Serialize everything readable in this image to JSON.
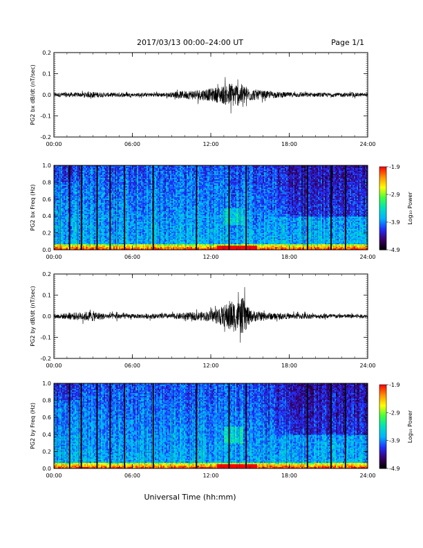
{
  "header": {
    "title": "2017/03/13  00:00–24:00 UT",
    "page": "Page 1/1"
  },
  "xaxis": {
    "label": "Universal Time (hh:mm)",
    "ticks": [
      "00:00",
      "06:00",
      "12:00",
      "18:00",
      "24:00"
    ]
  },
  "colorbar": {
    "label": "Log₁₀ Power",
    "ticks": [
      "-1.9",
      "-2.9",
      "-3.9",
      "-4.9"
    ],
    "range": [
      -4.9,
      -1.9
    ],
    "colors": [
      "#000000",
      "#3a006a",
      "#2030ff",
      "#00b4ff",
      "#00e0c0",
      "#40ff40",
      "#ffff00",
      "#ff9000",
      "#ff0000"
    ]
  },
  "chart_data": [
    {
      "type": "line",
      "ylabel": "PG2 bx dB/dt (nT/sec)",
      "ylim": [
        -0.2,
        0.2
      ],
      "yticks": [
        "0.2",
        "0.1",
        "0.0",
        "-0.1",
        "-0.2"
      ],
      "xlim_hours": [
        0,
        24
      ],
      "envelope": {
        "hours": [
          0,
          1,
          2,
          3,
          4,
          5,
          6,
          7,
          8,
          9,
          10,
          11,
          12,
          13,
          13.5,
          14,
          14.5,
          15,
          16,
          17,
          18,
          19,
          20,
          21,
          22,
          23,
          24
        ],
        "amplitude": [
          0.01,
          0.012,
          0.01,
          0.015,
          0.01,
          0.012,
          0.008,
          0.01,
          0.01,
          0.012,
          0.02,
          0.025,
          0.03,
          0.045,
          0.06,
          0.055,
          0.05,
          0.03,
          0.02,
          0.015,
          0.012,
          0.012,
          0.01,
          0.01,
          0.01,
          0.01,
          0.008
        ]
      }
    },
    {
      "type": "heatmap",
      "ylabel": "PG2 bx Freq (Hz)",
      "ylim": [
        0.0,
        1.0
      ],
      "yticks": [
        "1.0",
        "0.8",
        "0.6",
        "0.4",
        "0.2",
        "0.0"
      ],
      "xlim_hours": [
        0,
        24
      ],
      "value_range": [
        -4.9,
        -1.9
      ],
      "gap_lines_hours": [
        1.2,
        2.1,
        3.3,
        4.3,
        5.4,
        7.6,
        10.9,
        13.4,
        14.7,
        19.4,
        21.2,
        22.3
      ],
      "low_freq_enhancement_hours": [
        12.5,
        15.5
      ]
    },
    {
      "type": "line",
      "ylabel": "PG2 by dB/dt (nT/sec)",
      "ylim": [
        -0.2,
        0.2
      ],
      "yticks": [
        "0.2",
        "0.1",
        "0.0",
        "-0.1",
        "-0.2"
      ],
      "xlim_hours": [
        0,
        24
      ],
      "envelope": {
        "hours": [
          0,
          1,
          2,
          3,
          4,
          5,
          6,
          7,
          8,
          9,
          10,
          11,
          12,
          13,
          13.5,
          14,
          14.5,
          15,
          16,
          17,
          18,
          19,
          20,
          21,
          22,
          23,
          24
        ],
        "amplitude": [
          0.01,
          0.015,
          0.02,
          0.025,
          0.012,
          0.015,
          0.01,
          0.012,
          0.012,
          0.012,
          0.018,
          0.02,
          0.025,
          0.05,
          0.08,
          0.07,
          0.09,
          0.03,
          0.02,
          0.015,
          0.012,
          0.015,
          0.01,
          0.012,
          0.01,
          0.01,
          0.008
        ]
      }
    },
    {
      "type": "heatmap",
      "ylabel": "PG2 by Freq (Hz)",
      "ylim": [
        0.0,
        1.0
      ],
      "yticks": [
        "1.0",
        "0.8",
        "0.6",
        "0.4",
        "0.2",
        "0.0"
      ],
      "xlim_hours": [
        0,
        24
      ],
      "value_range": [
        -4.9,
        -1.9
      ],
      "gap_lines_hours": [
        1.2,
        2.1,
        3.3,
        4.3,
        5.4,
        7.6,
        10.9,
        13.4,
        14.7,
        19.4,
        21.2,
        22.3
      ],
      "low_freq_enhancement_hours": [
        12.5,
        15.5
      ]
    }
  ]
}
